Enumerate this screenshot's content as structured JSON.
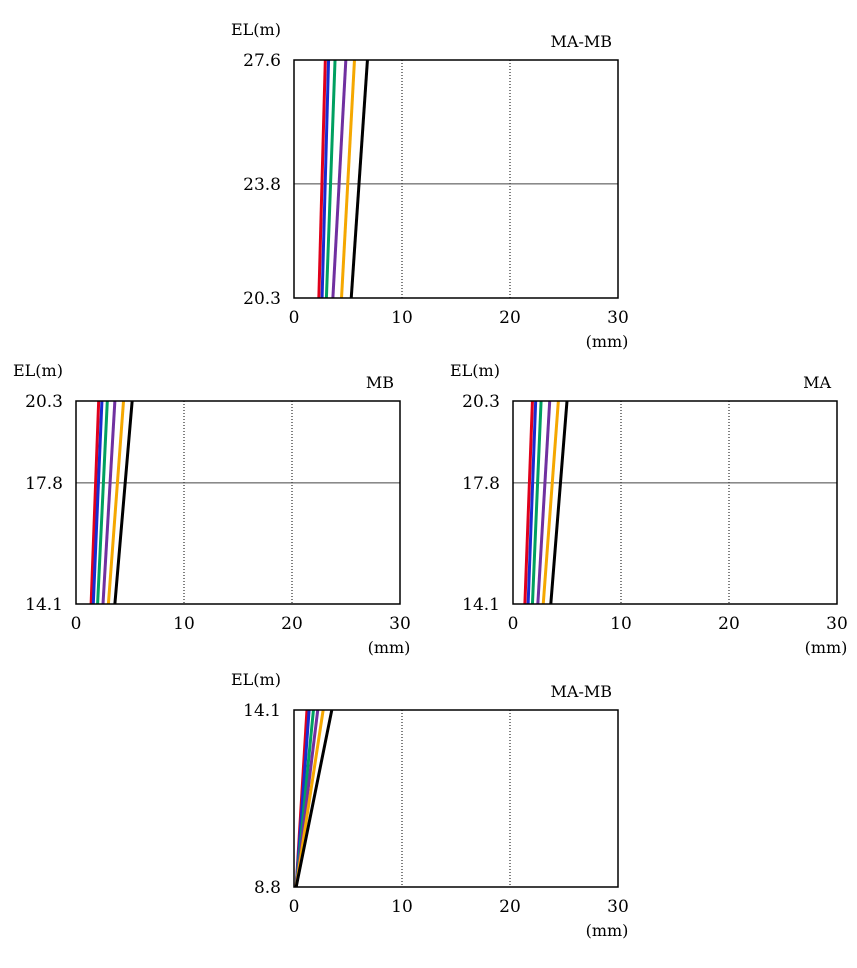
{
  "colors": {
    "red": "#e0001b",
    "blue": "#1a2bd0",
    "green": "#00a060",
    "purple": "#7030a0",
    "orange": "#f5a800",
    "black": "#000000"
  },
  "chart_data": [
    {
      "type": "line",
      "title": "MA-MB",
      "ylabel": "EL(m)",
      "xunit": "(mm)",
      "xlim": [
        0,
        30
      ],
      "x_ticks": [
        "0",
        "10",
        "20",
        "30"
      ],
      "y_ticks": [
        "27.6",
        "23.8",
        "20.3"
      ],
      "y_tick_values": [
        27.6,
        23.8,
        20.3
      ],
      "ylim": [
        20.3,
        27.6
      ],
      "grid": true,
      "series": [
        {
          "color": "red",
          "points": [
            [
              2.3,
              20.3
            ],
            [
              2.9,
              27.6
            ]
          ]
        },
        {
          "color": "blue",
          "points": [
            [
              2.6,
              20.3
            ],
            [
              3.2,
              27.6
            ]
          ]
        },
        {
          "color": "green",
          "points": [
            [
              3.0,
              20.3
            ],
            [
              3.8,
              27.6
            ]
          ]
        },
        {
          "color": "purple",
          "points": [
            [
              3.6,
              20.3
            ],
            [
              4.8,
              27.6
            ]
          ]
        },
        {
          "color": "orange",
          "points": [
            [
              4.4,
              20.3
            ],
            [
              5.6,
              27.6
            ]
          ]
        },
        {
          "color": "black",
          "points": [
            [
              5.3,
              20.3
            ],
            [
              6.8,
              27.6
            ]
          ]
        }
      ]
    },
    {
      "type": "line",
      "title": "MB",
      "ylabel": "EL(m)",
      "xunit": "(mm)",
      "xlim": [
        0,
        30
      ],
      "x_ticks": [
        "0",
        "10",
        "20",
        "30"
      ],
      "y_ticks": [
        "20.3",
        "17.8",
        "14.1"
      ],
      "y_tick_values": [
        20.3,
        17.8,
        14.1
      ],
      "ylim": [
        14.1,
        20.3
      ],
      "grid": true,
      "series": [
        {
          "color": "red",
          "points": [
            [
              1.4,
              14.1
            ],
            [
              2.1,
              20.3
            ]
          ]
        },
        {
          "color": "blue",
          "points": [
            [
              1.6,
              14.1
            ],
            [
              2.4,
              20.3
            ]
          ]
        },
        {
          "color": "green",
          "points": [
            [
              2.0,
              14.1
            ],
            [
              2.9,
              20.3
            ]
          ]
        },
        {
          "color": "purple",
          "points": [
            [
              2.5,
              14.1
            ],
            [
              3.6,
              20.3
            ]
          ]
        },
        {
          "color": "orange",
          "points": [
            [
              3.0,
              14.1
            ],
            [
              4.4,
              20.3
            ]
          ]
        },
        {
          "color": "black",
          "points": [
            [
              3.6,
              14.1
            ],
            [
              5.2,
              20.3
            ]
          ]
        }
      ]
    },
    {
      "type": "line",
      "title": "MA",
      "ylabel": "EL(m)",
      "xunit": "(mm)",
      "xlim": [
        0,
        30
      ],
      "x_ticks": [
        "0",
        "10",
        "20",
        "30"
      ],
      "y_ticks": [
        "20.3",
        "17.8",
        "14.1"
      ],
      "y_tick_values": [
        20.3,
        17.8,
        14.1
      ],
      "ylim": [
        14.1,
        20.3
      ],
      "grid": true,
      "series": [
        {
          "color": "red",
          "points": [
            [
              1.1,
              14.1
            ],
            [
              1.8,
              20.3
            ]
          ]
        },
        {
          "color": "blue",
          "points": [
            [
              1.4,
              14.1
            ],
            [
              2.1,
              20.3
            ]
          ]
        },
        {
          "color": "green",
          "points": [
            [
              1.8,
              14.1
            ],
            [
              2.6,
              20.3
            ]
          ]
        },
        {
          "color": "purple",
          "points": [
            [
              2.3,
              14.1
            ],
            [
              3.4,
              20.3
            ]
          ]
        },
        {
          "color": "orange",
          "points": [
            [
              2.8,
              14.1
            ],
            [
              4.2,
              20.3
            ]
          ]
        },
        {
          "color": "black",
          "points": [
            [
              3.5,
              14.1
            ],
            [
              5.0,
              20.3
            ]
          ]
        }
      ]
    },
    {
      "type": "line",
      "title": "MA-MB",
      "ylabel": "EL(m)",
      "xunit": "(mm)",
      "xlim": [
        0,
        30
      ],
      "x_ticks": [
        "0",
        "10",
        "20",
        "30"
      ],
      "y_ticks": [
        "14.1",
        "8.8"
      ],
      "y_tick_values": [
        14.1,
        8.8
      ],
      "ylim": [
        8.8,
        14.1
      ],
      "grid": true,
      "series": [
        {
          "color": "red",
          "points": [
            [
              0.2,
              8.8
            ],
            [
              1.2,
              14.1
            ]
          ]
        },
        {
          "color": "blue",
          "points": [
            [
              0.2,
              8.8
            ],
            [
              1.4,
              14.1
            ]
          ]
        },
        {
          "color": "green",
          "points": [
            [
              0.2,
              8.8
            ],
            [
              1.8,
              14.1
            ]
          ]
        },
        {
          "color": "purple",
          "points": [
            [
              0.2,
              8.8
            ],
            [
              2.2,
              14.1
            ]
          ]
        },
        {
          "color": "orange",
          "points": [
            [
              0.2,
              8.8
            ],
            [
              2.7,
              14.1
            ]
          ]
        },
        {
          "color": "black",
          "points": [
            [
              0.2,
              8.8
            ],
            [
              3.5,
              14.1
            ]
          ]
        }
      ]
    }
  ]
}
